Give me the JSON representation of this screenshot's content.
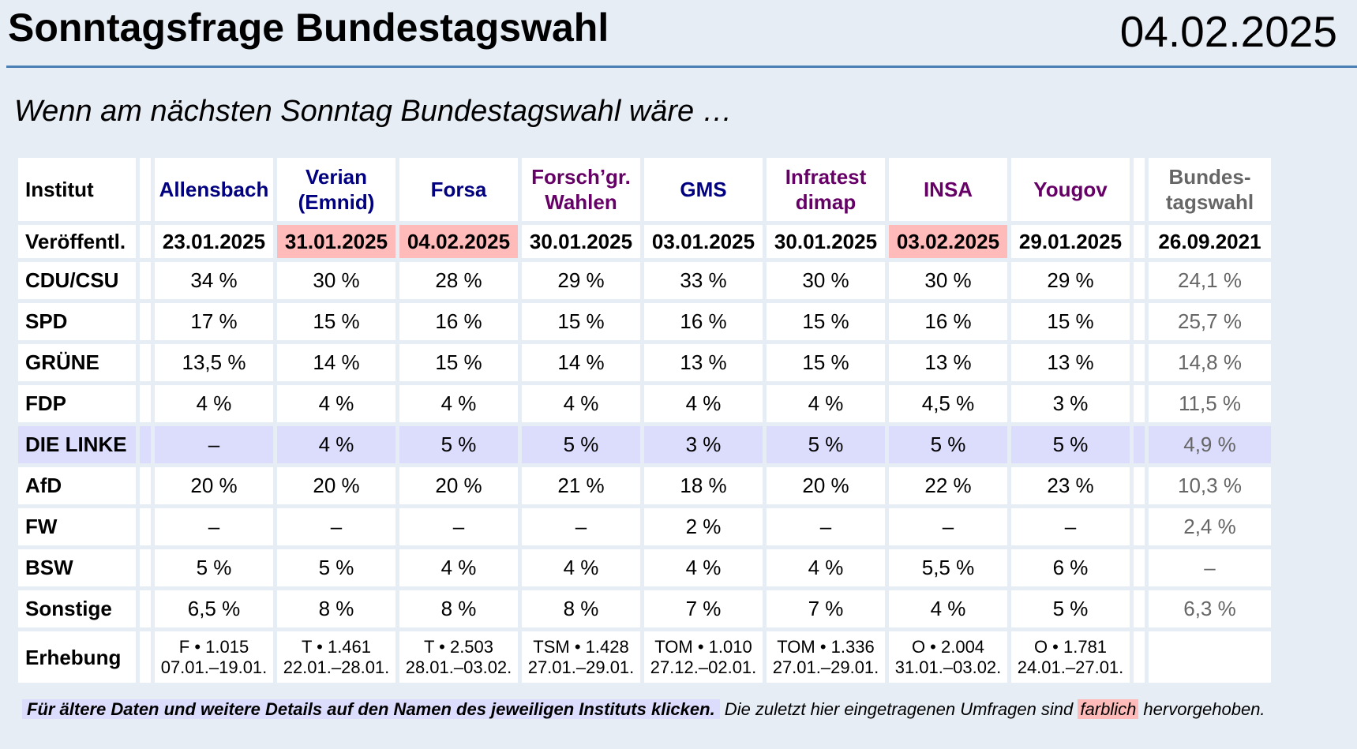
{
  "header": {
    "title": "Sonntagsfrage Bundestagswahl",
    "date": "04.02.2025"
  },
  "subtitle": "Wenn am nächsten Sonntag Bundestagswahl wäre …",
  "colors": {
    "background": "#e6edf5",
    "header_rule": "#4a80b4",
    "highlight_recent": "#ffbaba",
    "linke_row": "#dcdcfc",
    "institute_blue": "#000080",
    "institute_purple": "#660066",
    "election_grey": "#666666"
  },
  "table": {
    "row_labels": {
      "institut": "Institut",
      "published": "Veröffentl.",
      "survey": "Erhebung"
    },
    "institutes": [
      {
        "name_line1": "Allensbach",
        "name_line2": "",
        "color": "blue",
        "published": "23.01.2025",
        "recent": false,
        "survey_method": "F • 1.015",
        "survey_period": "07.01.–19.01."
      },
      {
        "name_line1": "Verian",
        "name_line2": "(Emnid)",
        "color": "blue",
        "published": "31.01.2025",
        "recent": true,
        "survey_method": "T • 1.461",
        "survey_period": "22.01.–28.01."
      },
      {
        "name_line1": "Forsa",
        "name_line2": "",
        "color": "blue",
        "published": "04.02.2025",
        "recent": true,
        "survey_method": "T • 2.503",
        "survey_period": "28.01.–03.02."
      },
      {
        "name_line1": "Forsch’gr.",
        "name_line2": "Wahlen",
        "color": "purple",
        "published": "30.01.2025",
        "recent": false,
        "survey_method": "TSM • 1.428",
        "survey_period": "27.01.–29.01."
      },
      {
        "name_line1": "GMS",
        "name_line2": "",
        "color": "blue",
        "published": "03.01.2025",
        "recent": false,
        "survey_method": "TOM • 1.010",
        "survey_period": "27.12.–02.01."
      },
      {
        "name_line1": "Infratest",
        "name_line2": "dimap",
        "color": "purple",
        "published": "30.01.2025",
        "recent": false,
        "survey_method": "TOM • 1.336",
        "survey_period": "27.01.–29.01."
      },
      {
        "name_line1": "INSA",
        "name_line2": "",
        "color": "purple",
        "published": "03.02.2025",
        "recent": true,
        "survey_method": "O • 2.004",
        "survey_period": "31.01.–03.02."
      },
      {
        "name_line1": "Yougov",
        "name_line2": "",
        "color": "purple",
        "published": "29.01.2025",
        "recent": false,
        "survey_method": "O • 1.781",
        "survey_period": "24.01.–27.01."
      }
    ],
    "election": {
      "name_line1": "Bundes-",
      "name_line2": "tagswahl",
      "published": "26.09.2021"
    },
    "parties": [
      {
        "name": "CDU/CSU",
        "values": [
          "34 %",
          "30 %",
          "28 %",
          "29 %",
          "33 %",
          "30 %",
          "30 %",
          "29 %"
        ],
        "election": "24,1 %"
      },
      {
        "name": "SPD",
        "values": [
          "17 %",
          "15 %",
          "16 %",
          "15 %",
          "16 %",
          "15 %",
          "16 %",
          "15 %"
        ],
        "election": "25,7 %"
      },
      {
        "name": "GRÜNE",
        "values": [
          "13,5 %",
          "14 %",
          "15 %",
          "14 %",
          "13 %",
          "15 %",
          "13 %",
          "13 %"
        ],
        "election": "14,8 %"
      },
      {
        "name": "FDP",
        "values": [
          "4 %",
          "4 %",
          "4 %",
          "4 %",
          "4 %",
          "4 %",
          "4,5 %",
          "3 %"
        ],
        "election": "11,5 %"
      },
      {
        "name": "DIE LINKE",
        "values": [
          "–",
          "4 %",
          "5 %",
          "5 %",
          "3 %",
          "5 %",
          "5 %",
          "5 %"
        ],
        "election": "4,9 %"
      },
      {
        "name": "AfD",
        "values": [
          "20 %",
          "20 %",
          "20 %",
          "21 %",
          "18 %",
          "20 %",
          "22 %",
          "23 %"
        ],
        "election": "10,3 %"
      },
      {
        "name": "FW",
        "values": [
          "–",
          "–",
          "–",
          "–",
          "2 %",
          "–",
          "–",
          "–"
        ],
        "election": "2,4 %"
      },
      {
        "name": "BSW",
        "values": [
          "5 %",
          "5 %",
          "4 %",
          "4 %",
          "4 %",
          "4 %",
          "5,5 %",
          "6 %"
        ],
        "election": "–"
      },
      {
        "name": "Sonstige",
        "values": [
          "6,5 %",
          "8 %",
          "8 %",
          "8 %",
          "7 %",
          "7 %",
          "4 %",
          "5 %"
        ],
        "election": "6,3 %"
      }
    ]
  },
  "footer": {
    "hint": "Für ältere Daten und weitere Details auf den Namen des jeweiligen Instituts klicken.",
    "note_before": " Die zuletzt hier eingetragenen Umfragen sind ",
    "note_marked": "farblich",
    "note_after": " hervorgehoben."
  }
}
